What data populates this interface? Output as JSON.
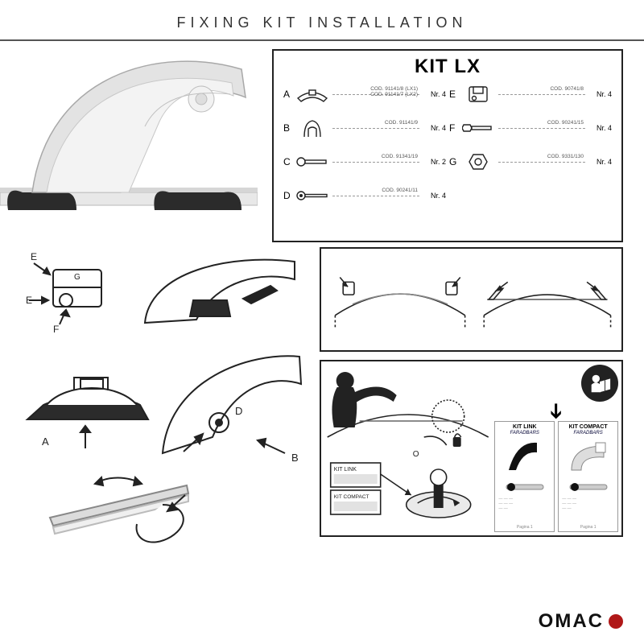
{
  "title": "FIXING KIT INSTALLATION",
  "kit": {
    "heading": "KIT LX",
    "items": [
      {
        "letter": "A",
        "code": "COD. 91141/8 (LX1)\nCOD. 91141/7 (LX2)",
        "qty": "Nr. 4",
        "icon": "canoe"
      },
      {
        "letter": "B",
        "code": "COD. 91141/9",
        "qty": "Nr. 4",
        "icon": "claw"
      },
      {
        "letter": "C",
        "code": "COD. 91341/19",
        "qty": "Nr. 2",
        "icon": "boltC"
      },
      {
        "letter": "D",
        "code": "COD. 90241/11",
        "qty": "Nr. 4",
        "icon": "boltD"
      },
      {
        "letter": "E",
        "code": "COD. 90741/8",
        "qty": "Nr. 4",
        "icon": "bracket"
      },
      {
        "letter": "F",
        "code": "COD. 90241/15",
        "qty": "Nr. 4",
        "icon": "boltF"
      },
      {
        "letter": "G",
        "code": "COD. 9331/130",
        "qty": "Nr. 4",
        "icon": "nut"
      }
    ]
  },
  "specs": {
    "link_label": "KIT LINK",
    "compact_label": "KIT COMPACT",
    "brand": "FARADBARS",
    "page": "Pagina 1"
  },
  "install_labels": {
    "kit_link": "KIT LINK",
    "kit_compact": "KIT COMPACT"
  },
  "brand": {
    "name": "OMAC"
  },
  "colors": {
    "border": "#222222",
    "text": "#333333",
    "dash": "#999999",
    "illus_fill": "#d0d0d0",
    "illus_dark": "#3b3b3b",
    "illus_light": "#efefef",
    "accent": "#b01818"
  }
}
